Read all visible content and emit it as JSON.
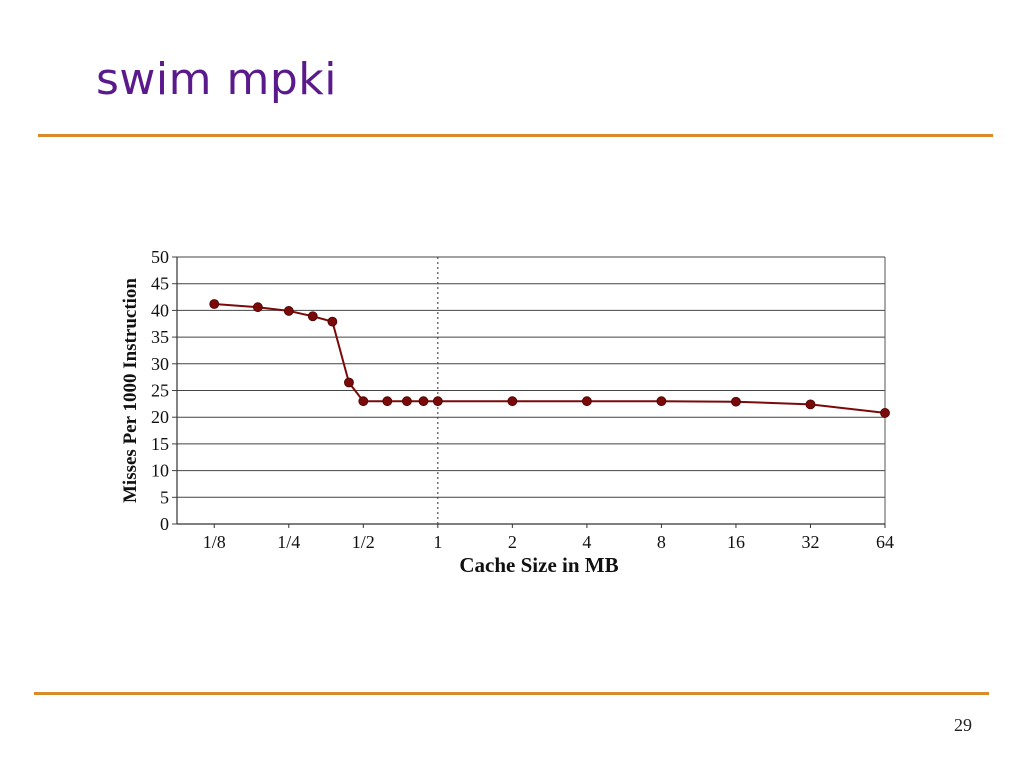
{
  "slide": {
    "title": "swim mpki",
    "page_number": "29"
  },
  "colors": {
    "title": "#5a1a8c",
    "rule": "#d98a2a",
    "series": "#7a0a0a"
  },
  "chart_data": {
    "type": "line",
    "title": "",
    "xlabel": "Cache Size in MB",
    "ylabel": "Misses Per 1000 Instruction",
    "x_scale": "log2",
    "xlim": [
      0.0884,
      64
    ],
    "ylim": [
      0,
      50
    ],
    "yticks": [
      0,
      5,
      10,
      15,
      20,
      25,
      30,
      35,
      40,
      45,
      50
    ],
    "xticks": [
      {
        "value": 0.125,
        "label": "1/8"
      },
      {
        "value": 0.25,
        "label": "1/4"
      },
      {
        "value": 0.5,
        "label": "1/2"
      },
      {
        "value": 1,
        "label": "1"
      },
      {
        "value": 2,
        "label": "2"
      },
      {
        "value": 4,
        "label": "4"
      },
      {
        "value": 8,
        "label": "8"
      },
      {
        "value": 16,
        "label": "16"
      },
      {
        "value": 32,
        "label": "32"
      },
      {
        "value": 64,
        "label": "64"
      }
    ],
    "grid": "horizontal",
    "reference_line_x": 1,
    "series": [
      {
        "x": [
          0.125,
          0.1875,
          0.25,
          0.3125,
          0.375,
          0.4375,
          0.5,
          0.625,
          0.75,
          0.875,
          1,
          2,
          4,
          8,
          16,
          32,
          64
        ],
        "y": [
          41.2,
          40.6,
          39.9,
          38.9,
          37.9,
          26.5,
          23.0,
          23.0,
          23.0,
          23.0,
          23.0,
          23.0,
          23.0,
          23.0,
          22.9,
          22.4,
          20.8
        ]
      }
    ]
  }
}
